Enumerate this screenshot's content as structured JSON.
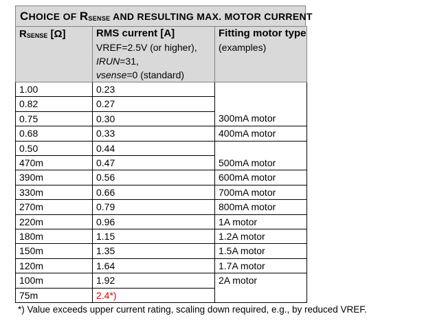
{
  "title": {
    "prefix_big": "C",
    "prefix_small": "HOICE OF ",
    "r_big": "R",
    "r_sub": "SENSE",
    "suffix": " AND RESULTING MAX. MOTOR CURRENT"
  },
  "header": {
    "col1_r": "R",
    "col1_sub": "SENSE",
    "col1_unit": " [Ω]",
    "col2_title": "RMS current [A]",
    "col2_line1": "VREF=2.5V (or higher),",
    "col2_line2_italic": "IRUN",
    "col2_line2_rest": "=31,",
    "col2_line3_italic": "vsense",
    "col2_line3_rest": "=0 (standard)",
    "col3_title": "Fitting motor type",
    "col3_sub": "(examples)"
  },
  "rows": [
    {
      "r": "1.00",
      "i": "0.23",
      "motor": ""
    },
    {
      "r": "0.82",
      "i": "0.27",
      "motor": ""
    },
    {
      "r": "0.75",
      "i": "0.30",
      "motor": "300mA motor"
    },
    {
      "r": "0.68",
      "i": "0.33",
      "motor": "400mA motor"
    },
    {
      "r": "0.50",
      "i": "0.44",
      "motor": ""
    },
    {
      "r": "470m",
      "i": "0.47",
      "motor": "500mA motor"
    },
    {
      "r": "390m",
      "i": "0.56",
      "motor": "600mA motor"
    },
    {
      "r": "330m",
      "i": "0.66",
      "motor": "700mA motor"
    },
    {
      "r": "270m",
      "i": "0.79",
      "motor": "800mA motor"
    },
    {
      "r": "220m",
      "i": "0.96",
      "motor": "1A motor"
    },
    {
      "r": "180m",
      "i": "1.15",
      "motor": "1.2A motor"
    },
    {
      "r": "150m",
      "i": "1.35",
      "motor": "1.5A motor"
    },
    {
      "r": "120m",
      "i": "1.64",
      "motor": "1.7A motor"
    },
    {
      "r": "100m",
      "i": "1.92",
      "motor": "2A motor"
    },
    {
      "r": "75m",
      "i": "2.4*)",
      "motor": ""
    }
  ],
  "footnote": "*) Value exceeds upper current rating, scaling down required, e.g., by reduced VREF.",
  "colors": {
    "header_bg": "#d9d9d9",
    "warning_text": "#e00000"
  }
}
